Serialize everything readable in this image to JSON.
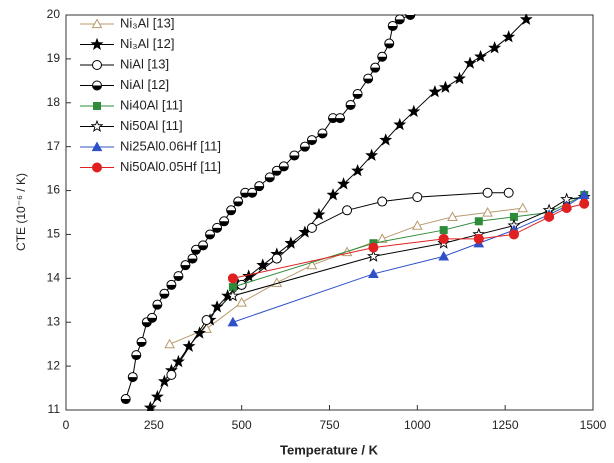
{
  "chart_data": {
    "type": "line",
    "x_label": "Temperature / K",
    "y_label": "CTE (10⁻⁶ / K)",
    "xlim": [
      0,
      1500
    ],
    "xticks": [
      0,
      250,
      500,
      750,
      1000,
      1250,
      1500
    ],
    "ylim": [
      11,
      20
    ],
    "yticks": [
      11,
      12,
      13,
      14,
      15,
      16,
      17,
      18,
      19,
      20
    ],
    "grid": false,
    "legend": "upper-left",
    "series": [
      {
        "name": "Ni₃Al  [13]",
        "color": "#b89a6e",
        "marker": "triangle-open",
        "x": [
          295,
          400,
          500,
          600,
          700,
          800,
          900,
          1000,
          1100,
          1200,
          1300
        ],
        "values": [
          12.5,
          12.85,
          13.45,
          13.9,
          14.3,
          14.6,
          14.9,
          15.2,
          15.4,
          15.5,
          15.6
        ]
      },
      {
        "name": "Ni₃Al [12]",
        "color": "#000000",
        "marker": "star",
        "x": [
          240,
          260,
          280,
          300,
          320,
          350,
          380,
          410,
          430,
          460,
          490,
          520,
          560,
          600,
          640,
          680,
          720,
          760,
          790,
          830,
          870,
          910,
          950,
          990,
          1050,
          1080,
          1120,
          1150,
          1180,
          1220,
          1260,
          1310
        ],
        "values": [
          11.05,
          11.3,
          11.65,
          11.9,
          12.1,
          12.45,
          12.75,
          13.05,
          13.35,
          13.6,
          13.85,
          14.05,
          14.3,
          14.55,
          14.8,
          15.05,
          15.45,
          15.9,
          16.15,
          16.45,
          16.8,
          17.15,
          17.5,
          17.8,
          18.25,
          18.35,
          18.55,
          18.9,
          19.05,
          19.25,
          19.5,
          19.9
        ]
      },
      {
        "name": "NiAl  [13]",
        "color": "#000000",
        "marker": "circle-open",
        "x": [
          300,
          400,
          500,
          600,
          700,
          800,
          900,
          1000,
          1200,
          1260
        ],
        "values": [
          11.8,
          13.05,
          13.85,
          14.45,
          15.15,
          15.55,
          15.75,
          15.85,
          15.95,
          15.95
        ]
      },
      {
        "name": "NiAl  [12]",
        "color": "#000000",
        "marker": "circle-half",
        "x": [
          170,
          190,
          200,
          215,
          230,
          245,
          260,
          280,
          300,
          320,
          340,
          360,
          370,
          390,
          410,
          430,
          450,
          470,
          490,
          510,
          530,
          550,
          580,
          600,
          620,
          650,
          680,
          700,
          730,
          760,
          780,
          810,
          830,
          860,
          880,
          900,
          920,
          930,
          950,
          980
        ],
        "values": [
          11.25,
          11.75,
          12.25,
          12.55,
          13.0,
          13.1,
          13.4,
          13.65,
          13.85,
          14.05,
          14.3,
          14.45,
          14.65,
          14.75,
          15.0,
          15.15,
          15.3,
          15.55,
          15.75,
          15.95,
          15.95,
          16.1,
          16.3,
          16.45,
          16.55,
          16.8,
          17.0,
          17.15,
          17.3,
          17.65,
          17.65,
          17.95,
          18.2,
          18.55,
          18.8,
          19.05,
          19.35,
          19.75,
          19.9,
          20.0
        ]
      },
      {
        "name": "Ni40Al [11]",
        "color": "#2e8b3a",
        "marker": "square",
        "x": [
          475,
          875,
          1075,
          1175,
          1275,
          1375,
          1475
        ],
        "values": [
          13.8,
          14.8,
          15.1,
          15.3,
          15.4,
          15.5,
          15.9
        ]
      },
      {
        "name": "Ni50Al [11]",
        "color": "#000000",
        "marker": "star-open",
        "x": [
          475,
          875,
          1075,
          1175,
          1275,
          1375,
          1425,
          1475
        ],
        "values": [
          13.6,
          14.5,
          14.8,
          15.0,
          15.2,
          15.55,
          15.8,
          15.85
        ]
      },
      {
        "name": "Ni25Al0.06Hf [11]",
        "color": "#3050c8",
        "marker": "triangle",
        "x": [
          475,
          875,
          1075,
          1175,
          1275,
          1375,
          1425,
          1475
        ],
        "values": [
          13.0,
          14.1,
          14.5,
          14.8,
          15.1,
          15.45,
          15.65,
          15.9
        ]
      },
      {
        "name": "Ni50Al0.05Hf [11]",
        "color": "#e02020",
        "marker": "circle",
        "x": [
          475,
          875,
          1075,
          1175,
          1275,
          1375,
          1425,
          1475
        ],
        "values": [
          14.0,
          14.7,
          14.9,
          14.9,
          15.0,
          15.4,
          15.6,
          15.7
        ]
      }
    ]
  }
}
